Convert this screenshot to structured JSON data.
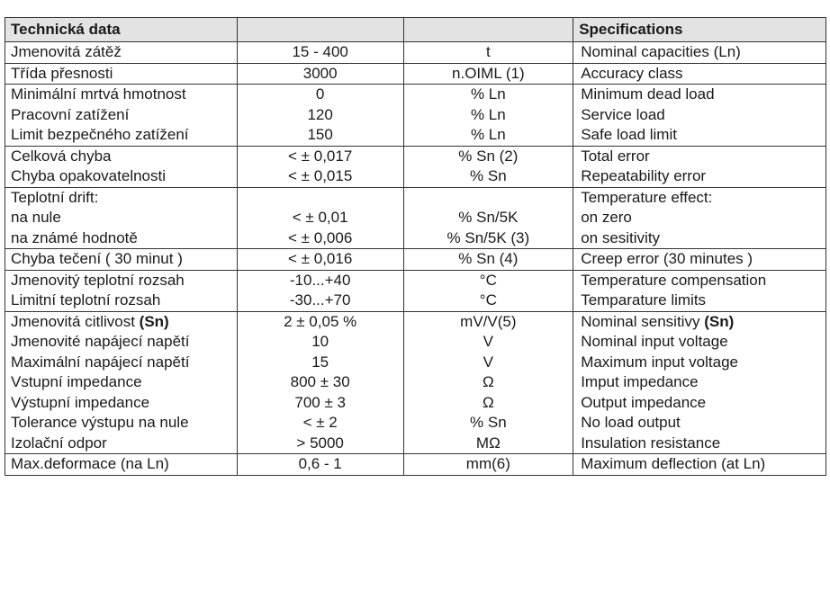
{
  "header": {
    "col1": "Technická data",
    "col2": "",
    "col3": "",
    "col4": "Specifications"
  },
  "rows": [
    {
      "label": "Jmenovitá zátěž",
      "value": "15 - 400",
      "unit": "t",
      "spec": "Nominal capacities (Ln)",
      "sep": true
    },
    {
      "label": "Třída přesnosti",
      "value": "3000",
      "unit": "n.OIML (1)",
      "spec": "Accuracy class",
      "sep": true
    },
    {
      "label": "Minimální mrtvá hmotnost",
      "value": "0",
      "unit": "% Ln",
      "spec": "Minimum dead load"
    },
    {
      "label": "Pracovní zatížení",
      "value": "120",
      "unit": "% Ln",
      "spec": "Service load"
    },
    {
      "label": "Limit bezpečného zatížení",
      "value": "150",
      "unit": "% Ln",
      "spec": "Safe load limit",
      "sep": true
    },
    {
      "label": "Celková chyba",
      "value": "< ± 0,017",
      "unit": "% Sn (2)",
      "spec": "Total error"
    },
    {
      "label": "Chyba opakovatelnosti",
      "value": "< ± 0,015",
      "unit": "% Sn",
      "spec": "Repeatability error",
      "sep": true
    },
    {
      "label": "Teplotní drift:",
      "value": "",
      "unit": "",
      "spec": "Temperature effect:"
    },
    {
      "label": "na nule",
      "value": "< ± 0,01",
      "unit": "% Sn/5K",
      "spec": "on zero"
    },
    {
      "label": "na známé hodnotě",
      "value": "< ± 0,006",
      "unit": "% Sn/5K (3)",
      "spec": "on sesitivity",
      "sep": true
    },
    {
      "label": "Chyba tečení ( 30 minut )",
      "value": "< ± 0,016",
      "unit": "% Sn (4)",
      "spec": "Creep error (30 minutes )",
      "sep": true
    },
    {
      "label": "Jmenovitý teplotní rozsah",
      "value": "-10...+40",
      "unit": "°C",
      "spec": "Temperature compensation"
    },
    {
      "label": "Limitní teplotní rozsah",
      "value": "-30...+70",
      "unit": "°C",
      "spec": "Temparature limits",
      "sep": true
    },
    {
      "label": "Jmenovitá citlivost",
      "label_bold": "(Sn)",
      "value": "2 ± 0,05 %",
      "unit": "mV/V(5)",
      "spec": "Nominal sensitivy",
      "spec_bold": "(Sn)"
    },
    {
      "label": "Jmenovité napájecí napětí",
      "value": "10",
      "unit": "V",
      "spec": "Nominal input voltage"
    },
    {
      "label": "Maximální napájecí napětí",
      "value": "15",
      "unit": "V",
      "spec": "Maximum input voltage"
    },
    {
      "label": "Vstupní impedance",
      "value": "800 ± 30",
      "unit": "Ω",
      "spec": "Imput impedance"
    },
    {
      "label": "Výstupní impedance",
      "value": "700 ± 3",
      "unit": "Ω",
      "spec": "Output impedance"
    },
    {
      "label": "Tolerance výstupu na nule",
      "value": "< ± 2",
      "unit": "% Sn",
      "spec": "No load output"
    },
    {
      "label": "Izolační odpor",
      "value": "> 5000",
      "unit": "MΩ",
      "spec": "Insulation resistance",
      "sep": true
    },
    {
      "label": "Max.deformace (na Ln)",
      "value": "0,6 - 1",
      "unit": "mm(6)",
      "spec": "Maximum deflection (at Ln)"
    }
  ]
}
